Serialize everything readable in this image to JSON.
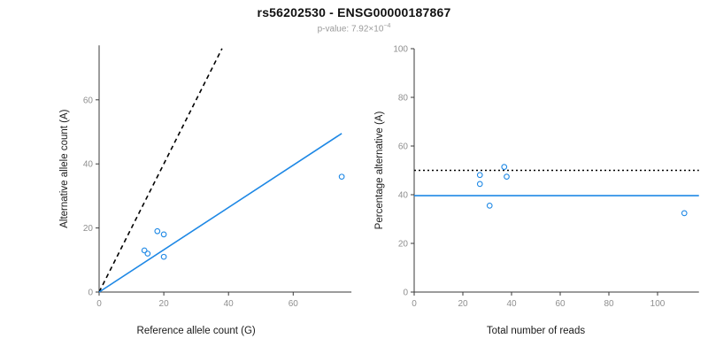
{
  "header": {
    "title": "rs56202530 - ENSG00000187867",
    "pvalue_prefix": "p-value: 7.92×10",
    "pvalue_exponent": "−4"
  },
  "colors": {
    "point": "#1E88E5",
    "fit_line": "#1E88E5",
    "reference_line": "#000000",
    "axis": "#3a3a3a",
    "tick_label": "#8f8f8f",
    "subtitle": "#9a9a9a"
  },
  "chart_data": [
    {
      "type": "scatter",
      "name": "allele-counts",
      "title": "",
      "xlabel": "Reference allele count (G)",
      "ylabel": "Alternative allele count (A)",
      "xticks": [
        0,
        20,
        40,
        60
      ],
      "yticks": [
        0,
        20,
        40,
        60
      ],
      "xlim": [
        0,
        78
      ],
      "ylim": [
        0,
        77
      ],
      "grid": false,
      "points": [
        [
          14,
          13
        ],
        [
          15,
          12
        ],
        [
          18,
          19
        ],
        [
          20,
          18
        ],
        [
          20,
          11
        ],
        [
          75,
          36
        ]
      ],
      "lines": [
        {
          "name": "expected-dashed-line",
          "style": "dashed",
          "color": "#000000",
          "from": [
            0,
            0
          ],
          "to": [
            38,
            76
          ]
        },
        {
          "name": "fit-line",
          "style": "solid",
          "color": "#1E88E5",
          "from": [
            0,
            0
          ],
          "to": [
            75,
            49.5
          ]
        }
      ]
    },
    {
      "type": "scatter",
      "name": "percentage-alternative",
      "title": "",
      "xlabel": "Total number of reads",
      "ylabel": "Percentage alternative (A)",
      "xticks": [
        0,
        20,
        40,
        60,
        80,
        100
      ],
      "yticks": [
        0,
        20,
        40,
        60,
        80,
        100
      ],
      "xlim": [
        0,
        117
      ],
      "ylim": [
        0,
        100
      ],
      "grid": false,
      "points": [
        [
          27,
          48.1
        ],
        [
          27,
          44.4
        ],
        [
          37,
          51.4
        ],
        [
          38,
          47.4
        ],
        [
          31,
          35.5
        ],
        [
          111,
          32.4
        ]
      ],
      "lines": [
        {
          "name": "fifty-percent-dotted-line",
          "style": "dotted",
          "color": "#000000",
          "from": [
            0,
            50
          ],
          "to": [
            117,
            50
          ]
        },
        {
          "name": "mean-percentage-line",
          "style": "solid",
          "color": "#1E88E5",
          "from": [
            0,
            39.6
          ],
          "to": [
            117,
            39.6
          ]
        }
      ]
    }
  ]
}
